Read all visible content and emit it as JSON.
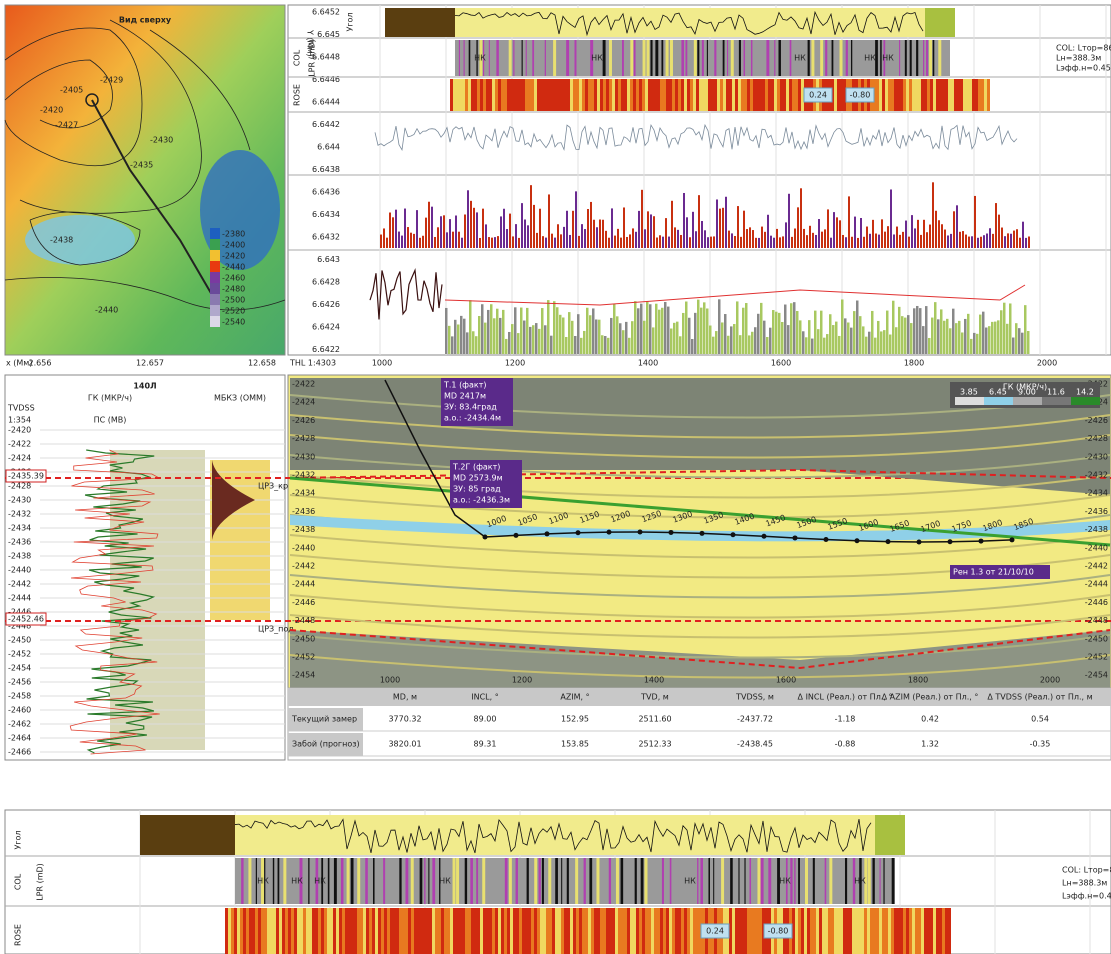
{
  "map": {
    "title": "Вид сверху",
    "x_label": "x (Мм)",
    "x_ticks": [
      "2.656",
      "12.657",
      "12.658"
    ],
    "contour_labels": [
      "-2405",
      "-2420",
      "-2427",
      "-2429",
      "-2430",
      "-2435",
      "-2438",
      "-2440"
    ],
    "legend": [
      "-2380",
      "-2400",
      "-2420",
      "-2440",
      "-2460",
      "-2480",
      "-2500",
      "-2520",
      "-2540"
    ]
  },
  "tracks": {
    "y_label": "Y (Мм)",
    "y_ticks": [
      "6.6452",
      "6.645",
      "6.6448",
      "6.6446",
      "6.6444",
      "6.6442",
      "6.644",
      "6.6438",
      "6.6436",
      "6.6434",
      "6.6432",
      "6.643",
      "6.6428",
      "6.6426",
      "6.6424",
      "6.6422"
    ],
    "track_names": [
      "Угол",
      "COL",
      "LPR (mD)",
      "ROSE"
    ],
    "scale": "THL 1:4303",
    "x_ticks": [
      "1000",
      "1200",
      "1400",
      "1600",
      "1800",
      "2000"
    ],
    "col_labels": [
      "НК",
      "НК",
      "НК",
      "НК",
      "НК"
    ],
    "info": [
      "COL: Lтop=866.2",
      "Lн=388.3м",
      "Lэфф.н=0.45"
    ],
    "rose_values": [
      "0.24",
      "-0.80"
    ]
  },
  "well_log": {
    "title": "140Л",
    "tvdss": "TVDSS",
    "scale": "1:354",
    "curve1": "ГК (МКР/ч)",
    "curve2": "ПС (МВ)",
    "curve3": "МБКЗ (ОММ)",
    "depth_ticks": [
      "-2420",
      "-2422",
      "-2424",
      "-2426",
      "-2428",
      "-2430",
      "-2432",
      "-2434",
      "-2436",
      "-2438",
      "-2440",
      "-2442",
      "-2444",
      "-2446",
      "-2448",
      "-2450",
      "-2452",
      "-2454",
      "-2456",
      "-2458",
      "-2460",
      "-2462",
      "-2464",
      "-2466"
    ],
    "markers": [
      "-2435.39",
      "-2452.46"
    ],
    "tops": [
      "ЦРЗ_кр",
      "ЦРЗ_под"
    ]
  },
  "section": {
    "depth_ticks": [
      "-2422",
      "-2424",
      "-2426",
      "-2428",
      "-2430",
      "-2432",
      "-2434",
      "-2436",
      "-2438",
      "-2440",
      "-2442",
      "-2444",
      "-2446",
      "-2448",
      "-2450",
      "-2452",
      "-2454"
    ],
    "x_ticks": [
      "1000",
      "1200",
      "1400",
      "1600",
      "1800",
      "2000"
    ],
    "md_labels": [
      "1000",
      "1050",
      "1100",
      "1150",
      "1200",
      "1250",
      "1300",
      "1350",
      "1400",
      "1450",
      "1500",
      "1550",
      "1600",
      "1650",
      "1700",
      "1750",
      "1800",
      "1850"
    ],
    "callouts": [
      [
        "Т.1 (факт)",
        "MD 2417м",
        "ЗУ: 83.4град",
        "а.о.: -2434.4м"
      ],
      [
        "Т.2Г (факт)",
        "MD 2573.9м",
        "ЗУ: 85 град",
        "а.о.: -2436.3м"
      ]
    ],
    "note": "Рен 1.3 от 21/10/10",
    "legend_title": "ГК (МКР/ч)",
    "legend_ticks": [
      "3.85",
      "6.45",
      "9.00",
      "11.6",
      "14.2"
    ]
  },
  "table": {
    "headers": [
      "MD, м",
      "INCL, °",
      "AZIM, °",
      "TVD, м",
      "TVDSS, м",
      "Δ INCL (Реал.) от Пл., °",
      "Δ AZIM (Реал.) от Пл., °",
      "Δ TVDSS (Реал.) от Пл., м"
    ],
    "rows": [
      [
        "Текущий замер",
        "3770.32",
        "89.00",
        "152.95",
        "2511.60",
        "-2437.72",
        "-1.18",
        "0.42",
        "0.54"
      ],
      [
        "Забой (прогноз)",
        "3820.01",
        "89.31",
        "153.85",
        "2512.33",
        "-2438.45",
        "-0.88",
        "1.32",
        "-0.35"
      ]
    ]
  },
  "bottom": {
    "track_names": [
      "Угол",
      "COL",
      "LPR (mD)",
      "ROSE"
    ],
    "col_labels": [
      "НК",
      "НК",
      "НК",
      "НК",
      "НК",
      "НК",
      "НК"
    ],
    "info": [
      "COL: Lтop=866.2",
      "Lн=388.3м",
      "Lэфф.н=0.45"
    ],
    "rose_values": [
      "0.24",
      "-0.80"
    ]
  }
}
